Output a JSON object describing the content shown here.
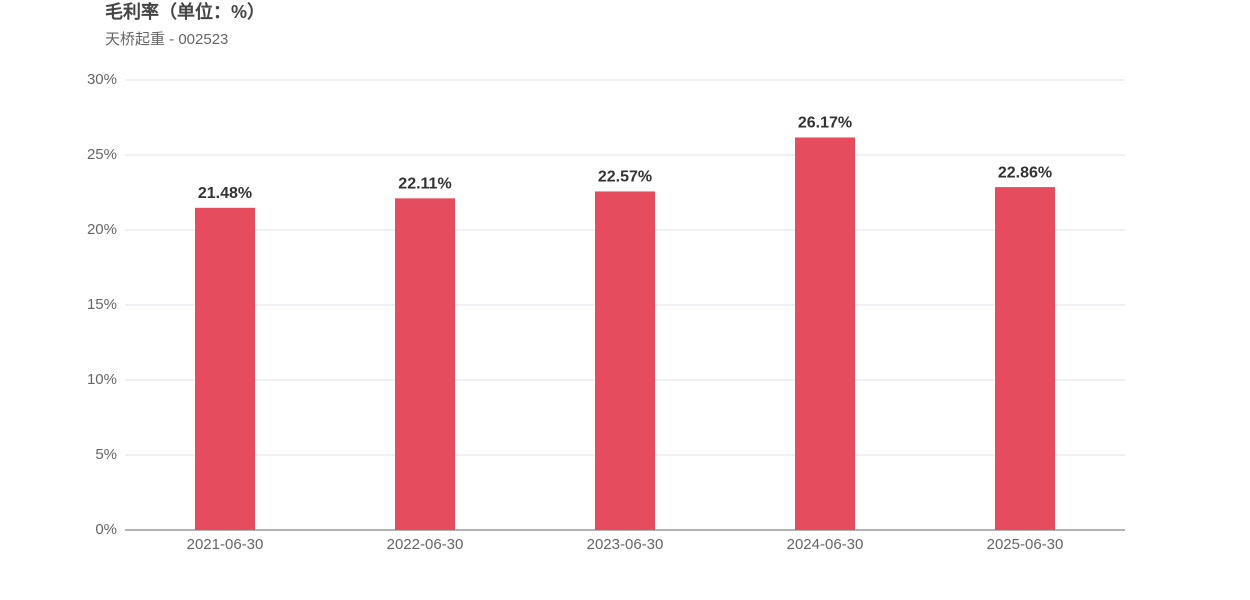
{
  "chart_data": {
    "type": "bar",
    "title": "毛利率（单位：%）",
    "subtitle": "天桥起重 - 002523",
    "categories": [
      "2021-06-30",
      "2022-06-30",
      "2023-06-30",
      "2024-06-30",
      "2025-06-30"
    ],
    "values": [
      21.48,
      22.11,
      22.57,
      26.17,
      22.86
    ],
    "value_labels": [
      "21.48%",
      "22.11%",
      "22.57%",
      "26.17%",
      "22.86%"
    ],
    "color": "#e54c5e",
    "ylim": [
      0,
      30
    ],
    "yticks": [
      {
        "value": 0,
        "label": "0%"
      },
      {
        "value": 5,
        "label": "5%"
      },
      {
        "value": 10,
        "label": "10%"
      },
      {
        "value": 15,
        "label": "15%"
      },
      {
        "value": 20,
        "label": "20%"
      },
      {
        "value": 25,
        "label": "25%"
      },
      {
        "value": 30,
        "label": "30%"
      }
    ],
    "grid": true
  }
}
